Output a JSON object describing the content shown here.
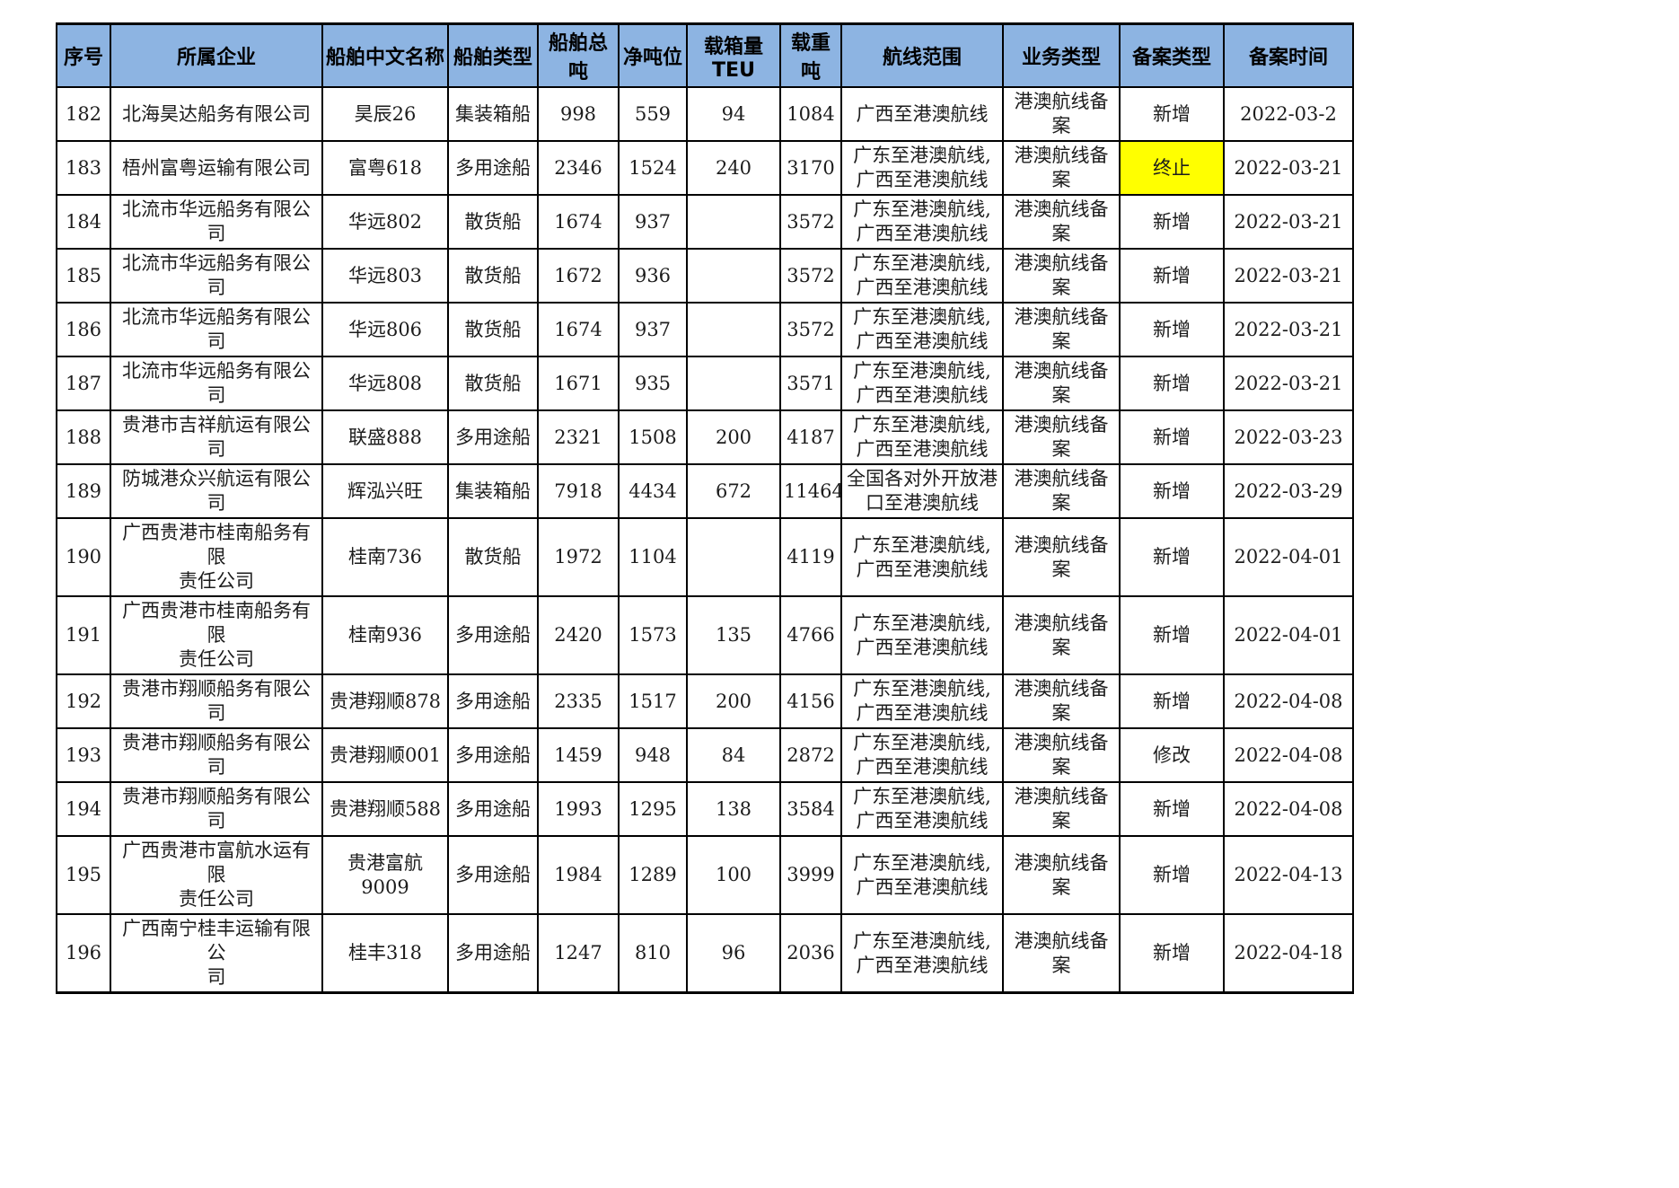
{
  "page": {
    "background_color": "#ffffff",
    "grid_line_color": "#000000",
    "header_bg_color": "#8db4e2",
    "highlight_color": "#ffff00"
  },
  "table": {
    "header": {
      "columns": [
        {
          "key": "no",
          "label": "序号"
        },
        {
          "key": "company",
          "label": "所属企业"
        },
        {
          "key": "ship_name",
          "label": "船舶中文名称"
        },
        {
          "key": "ship_type",
          "label": "船舶类型"
        },
        {
          "key": "gross",
          "label": "船舶总吨"
        },
        {
          "key": "net",
          "label": "净吨位"
        },
        {
          "key": "teu",
          "label": "载箱量TEU"
        },
        {
          "key": "dwt",
          "label": "载重吨"
        },
        {
          "key": "route",
          "label": "航线范围"
        },
        {
          "key": "business",
          "label": "业务类型"
        },
        {
          "key": "record_type",
          "label": "备案类型"
        },
        {
          "key": "record_date",
          "label": "备案时间"
        }
      ]
    },
    "rows": [
      {
        "no": "182",
        "company": "北海昊达船务有限公司",
        "company_small": true,
        "ship_name": "昊辰26",
        "ship_type": "集装箱船",
        "gross": "998",
        "net": "559",
        "teu": "94",
        "dwt": "1084",
        "route": "广西至港澳航线",
        "business": "港澳航线备案",
        "record_type": "新增",
        "record_type_highlight": false,
        "record_date": "2022-03-2"
      },
      {
        "no": "183",
        "company": "梧州富粤运输有限公司",
        "company_small": false,
        "ship_name": "富粤618",
        "ship_type": "多用途船",
        "gross": "2346",
        "net": "1524",
        "teu": "240",
        "dwt": "3170",
        "route": "广东至港澳航线,\n广西至港澳航线",
        "business": "港澳航线备案",
        "record_type": "终止",
        "record_type_highlight": true,
        "record_date": "2022-03-21"
      },
      {
        "no": "184",
        "company": "北流市华远船务有限公司",
        "company_small": false,
        "ship_name": "华远802",
        "ship_type": "散货船",
        "gross": "1674",
        "net": "937",
        "teu": "",
        "dwt": "3572",
        "route": "广东至港澳航线,\n广西至港澳航线",
        "business": "港澳航线备案",
        "record_type": "新增",
        "record_type_highlight": false,
        "record_date": "2022-03-21"
      },
      {
        "no": "185",
        "company": "北流市华远船务有限公司",
        "company_small": false,
        "ship_name": "华远803",
        "ship_type": "散货船",
        "gross": "1672",
        "net": "936",
        "teu": "",
        "dwt": "3572",
        "route": "广东至港澳航线,\n广西至港澳航线",
        "business": "港澳航线备案",
        "record_type": "新增",
        "record_type_highlight": false,
        "record_date": "2022-03-21"
      },
      {
        "no": "186",
        "company": "北流市华远船务有限公司",
        "company_small": false,
        "ship_name": "华远806",
        "ship_type": "散货船",
        "gross": "1674",
        "net": "937",
        "teu": "",
        "dwt": "3572",
        "route": "广东至港澳航线,\n广西至港澳航线",
        "business": "港澳航线备案",
        "record_type": "新增",
        "record_type_highlight": false,
        "record_date": "2022-03-21"
      },
      {
        "no": "187",
        "company": "北流市华远船务有限公司",
        "company_small": false,
        "ship_name": "华远808",
        "ship_type": "散货船",
        "gross": "1671",
        "net": "935",
        "teu": "",
        "dwt": "3571",
        "route": "广东至港澳航线,\n广西至港澳航线",
        "business": "港澳航线备案",
        "record_type": "新增",
        "record_type_highlight": false,
        "record_date": "2022-03-21"
      },
      {
        "no": "188",
        "company": "贵港市吉祥航运有限公司",
        "company_small": false,
        "ship_name": "联盛888",
        "ship_type": "多用途船",
        "gross": "2321",
        "net": "1508",
        "teu": "200",
        "dwt": "4187",
        "route": "广东至港澳航线,\n广西至港澳航线",
        "business": "港澳航线备案",
        "record_type": "新增",
        "record_type_highlight": false,
        "record_date": "2022-03-23"
      },
      {
        "no": "189",
        "company": "防城港众兴航运有限公司",
        "company_small": false,
        "ship_name": "辉泓兴旺",
        "ship_type": "集装箱船",
        "gross": "7918",
        "net": "4434",
        "teu": "672",
        "dwt": "11464",
        "route": "全国各对外开放港\n口至港澳航线",
        "business": "港澳航线备案",
        "record_type": "新增",
        "record_type_highlight": false,
        "record_date": "2022-03-29"
      },
      {
        "no": "190",
        "company": "广西贵港市桂南船务有限\n责任公司",
        "company_small": false,
        "ship_name": "桂南736",
        "ship_type": "散货船",
        "gross": "1972",
        "net": "1104",
        "teu": "",
        "dwt": "4119",
        "route": "广东至港澳航线,\n广西至港澳航线",
        "business": "港澳航线备案",
        "record_type": "新增",
        "record_type_highlight": false,
        "record_date": "2022-04-01"
      },
      {
        "no": "191",
        "company": "广西贵港市桂南船务有限\n责任公司",
        "company_small": false,
        "ship_name": "桂南936",
        "ship_type": "多用途船",
        "gross": "2420",
        "net": "1573",
        "teu": "135",
        "dwt": "4766",
        "route": "广东至港澳航线,\n广西至港澳航线",
        "business": "港澳航线备案",
        "record_type": "新增",
        "record_type_highlight": false,
        "record_date": "2022-04-01"
      },
      {
        "no": "192",
        "company": "贵港市翔顺船务有限公司",
        "company_small": false,
        "ship_name": "贵港翔顺878",
        "ship_type": "多用途船",
        "gross": "2335",
        "net": "1517",
        "teu": "200",
        "dwt": "4156",
        "route": "广东至港澳航线,\n广西至港澳航线",
        "business": "港澳航线备案",
        "record_type": "新增",
        "record_type_highlight": false,
        "record_date": "2022-04-08"
      },
      {
        "no": "193",
        "company": "贵港市翔顺船务有限公司",
        "company_small": false,
        "ship_name": "贵港翔顺001",
        "ship_type": "多用途船",
        "gross": "1459",
        "net": "948",
        "teu": "84",
        "dwt": "2872",
        "route": "广东至港澳航线,\n广西至港澳航线",
        "business": "港澳航线备案",
        "record_type": "修改",
        "record_type_highlight": false,
        "record_date": "2022-04-08"
      },
      {
        "no": "194",
        "company": "贵港市翔顺船务有限公司",
        "company_small": false,
        "ship_name": "贵港翔顺588",
        "ship_type": "多用途船",
        "gross": "1993",
        "net": "1295",
        "teu": "138",
        "dwt": "3584",
        "route": "广东至港澳航线,\n广西至港澳航线",
        "business": "港澳航线备案",
        "record_type": "新增",
        "record_type_highlight": false,
        "record_date": "2022-04-08"
      },
      {
        "no": "195",
        "company": "广西贵港市富航水运有限\n责任公司",
        "company_small": false,
        "ship_name": "贵港富航9009",
        "ship_type": "多用途船",
        "gross": "1984",
        "net": "1289",
        "teu": "100",
        "dwt": "3999",
        "route": "广东至港澳航线,\n广西至港澳航线",
        "business": "港澳航线备案",
        "record_type": "新增",
        "record_type_highlight": false,
        "record_date": "2022-04-13"
      },
      {
        "no": "196",
        "company": "广西南宁桂丰运输有限公\n司",
        "company_small": false,
        "ship_name": "桂丰318",
        "ship_type": "多用途船",
        "gross": "1247",
        "net": "810",
        "teu": "96",
        "dwt": "2036",
        "route": "广东至港澳航线,\n广西至港澳航线",
        "business": "港澳航线备案",
        "record_type": "新增",
        "record_type_highlight": false,
        "record_date": "2022-04-18"
      }
    ]
  }
}
